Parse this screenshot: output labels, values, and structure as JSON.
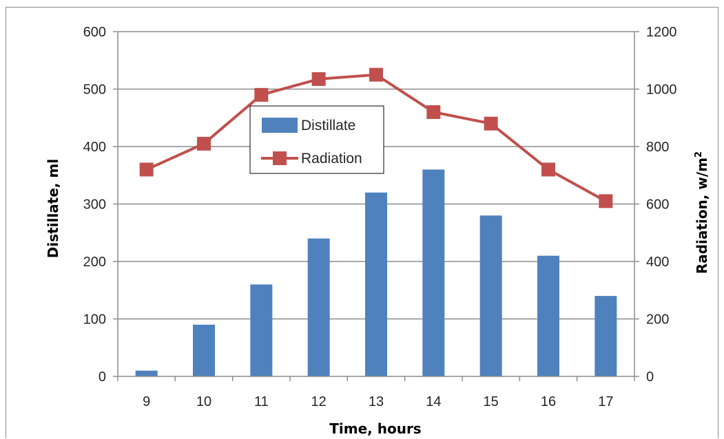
{
  "chart_data": {
    "type": "bar",
    "categories": [
      "9",
      "10",
      "11",
      "12",
      "13",
      "14",
      "15",
      "16",
      "17"
    ],
    "series": [
      {
        "name": "Distillate",
        "type": "bar",
        "axis": "left",
        "color": "#4f81bd",
        "values": [
          10,
          90,
          160,
          240,
          320,
          360,
          280,
          210,
          140
        ]
      },
      {
        "name": "Radiation",
        "type": "line",
        "marker": "square",
        "axis": "right",
        "color": "#c0504d",
        "values": [
          720,
          810,
          980,
          1035,
          1050,
          920,
          880,
          720,
          610
        ]
      }
    ],
    "xlabel": "Time, hours",
    "ylabel": "Distillate, ml",
    "y2label": {
      "base": "Radiation, w/m",
      "superscript": "2"
    },
    "ylim": [
      0,
      600
    ],
    "y2lim": [
      0,
      1200
    ],
    "yticks": [
      0,
      100,
      200,
      300,
      400,
      500,
      600
    ],
    "y2ticks": [
      0,
      200,
      400,
      600,
      800,
      1000,
      1200
    ],
    "grid": "horizontal",
    "legend": "upper-center"
  }
}
